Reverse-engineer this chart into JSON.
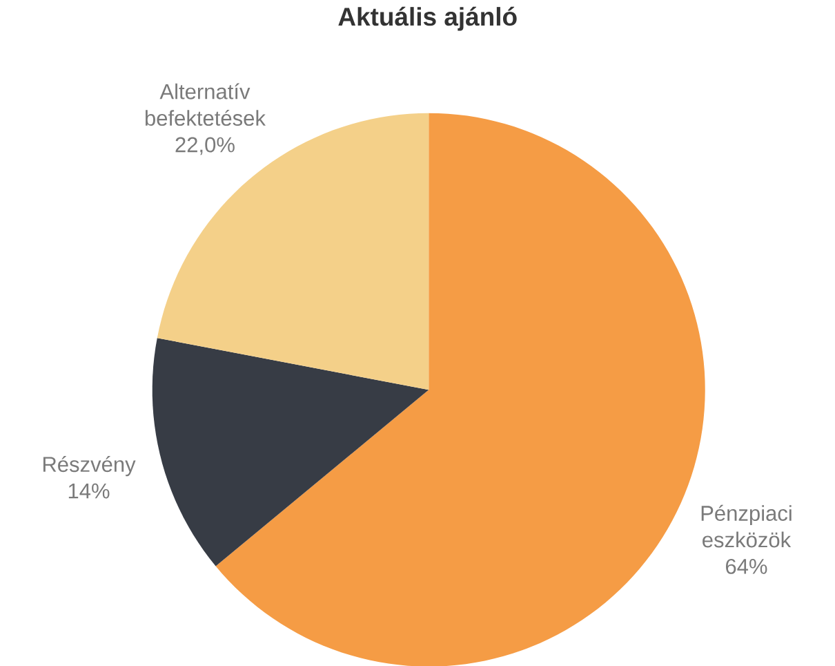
{
  "chart_data": {
    "type": "pie",
    "title": "Aktuális ajánló",
    "categories": [
      "Pénzpiaci eszközök",
      "Részvény",
      "Alternatív befektetések"
    ],
    "values": [
      64,
      14,
      22.0
    ],
    "value_labels": [
      "64%",
      "14%",
      "22,0%"
    ],
    "colors": [
      "#f59c45",
      "#373c45",
      "#f4d089"
    ]
  }
}
